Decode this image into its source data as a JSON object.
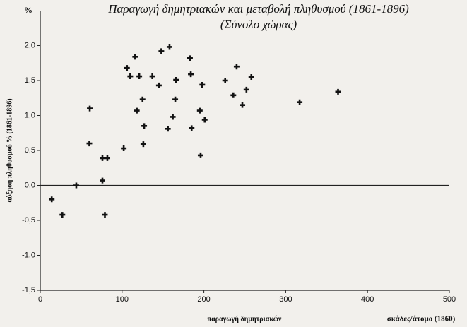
{
  "chart_data": {
    "type": "scatter",
    "title": "Παραγωγή δημητριακών και μεταβολή πληθυσμού (1861-1896)",
    "subtitle": "(Σύνολο χώρας)",
    "y_unit": "%",
    "y_label": "αύξηση πληθυσμού   % (1861-1896)",
    "x_label": "παραγωγή δημητριακών",
    "x_unit": "σκάδες/άτομο (1860)",
    "color": "#111111",
    "x": [
      14,
      27,
      44,
      60.5,
      60,
      76,
      76,
      82,
      79,
      102,
      106,
      110,
      116,
      118,
      121,
      125,
      127,
      126,
      137,
      145,
      148,
      158,
      156,
      162,
      166,
      165,
      183,
      184,
      185,
      195,
      198,
      196,
      201,
      226,
      236,
      240,
      247,
      252,
      258,
      317,
      364
    ],
    "values": [
      -0.2,
      -0.42,
      0.0,
      1.1,
      0.6,
      0.07,
      0.39,
      0.39,
      -0.42,
      0.53,
      1.68,
      1.56,
      1.84,
      1.07,
      1.56,
      1.23,
      0.85,
      0.59,
      1.56,
      1.43,
      1.92,
      1.98,
      0.81,
      0.98,
      1.51,
      1.23,
      1.82,
      1.59,
      0.82,
      1.07,
      1.44,
      0.43,
      0.94,
      1.5,
      1.29,
      1.7,
      1.15,
      1.37,
      1.55,
      1.19,
      1.34
    ],
    "xlim": [
      0,
      500
    ],
    "xticks": [
      0,
      100,
      200,
      300,
      400,
      500
    ],
    "ylim": [
      -1.5,
      2.5
    ],
    "yticks": [
      {
        "value": -1.5,
        "label": "-1,5"
      },
      {
        "value": -1.0,
        "label": "-1,0"
      },
      {
        "value": -0.5,
        "label": "-0,5"
      },
      {
        "value": 0,
        "label": "0,0"
      },
      {
        "value": 0.5,
        "label": "0,5"
      },
      {
        "value": 1.0,
        "label": "1,0"
      },
      {
        "value": 1.5,
        "label": "1,5"
      },
      {
        "value": 2.0,
        "label": "2,0"
      }
    ],
    "grid": false
  }
}
